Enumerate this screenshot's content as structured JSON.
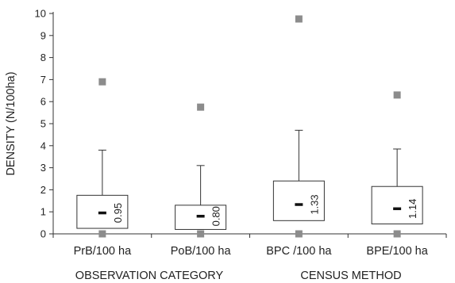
{
  "chart_data": {
    "type": "box",
    "ylabel": "DENSITY (N/100ha)",
    "ylim": [
      0,
      10
    ],
    "yticks": [
      "0",
      "1",
      "2",
      "3",
      "4",
      "5",
      "6",
      "7",
      "8",
      "9",
      "10"
    ],
    "categories": [
      "PrB/100 ha",
      "PoB/100 ha",
      "BPC /100 ha",
      "BPE/100 ha"
    ],
    "boxes": [
      {
        "category": "PrB/100 ha",
        "min": 0,
        "q1": 0.25,
        "median": 0.95,
        "q3": 1.75,
        "whisker_high": 3.8,
        "max": 6.9,
        "median_label": "0.95"
      },
      {
        "category": "PoB/100 ha",
        "min": 0,
        "q1": 0.2,
        "median": 0.8,
        "q3": 1.3,
        "whisker_high": 3.1,
        "max": 5.75,
        "median_label": "0.80"
      },
      {
        "category": "BPC /100 ha",
        "min": 0,
        "q1": 0.6,
        "median": 1.33,
        "q3": 2.4,
        "whisker_high": 4.7,
        "max": 9.75,
        "median_label": "1.33"
      },
      {
        "category": "BPE/100 ha",
        "min": 0,
        "q1": 0.45,
        "median": 1.14,
        "q3": 2.15,
        "whisker_high": 3.85,
        "max": 6.3,
        "median_label": "1.14"
      }
    ],
    "footer_labels": [
      "OBSERVATION CATEGORY",
      "CENSUS METHOD"
    ],
    "colors": {
      "marker": "#8c8c8c",
      "axis": "#333333",
      "median": "#111111"
    }
  }
}
